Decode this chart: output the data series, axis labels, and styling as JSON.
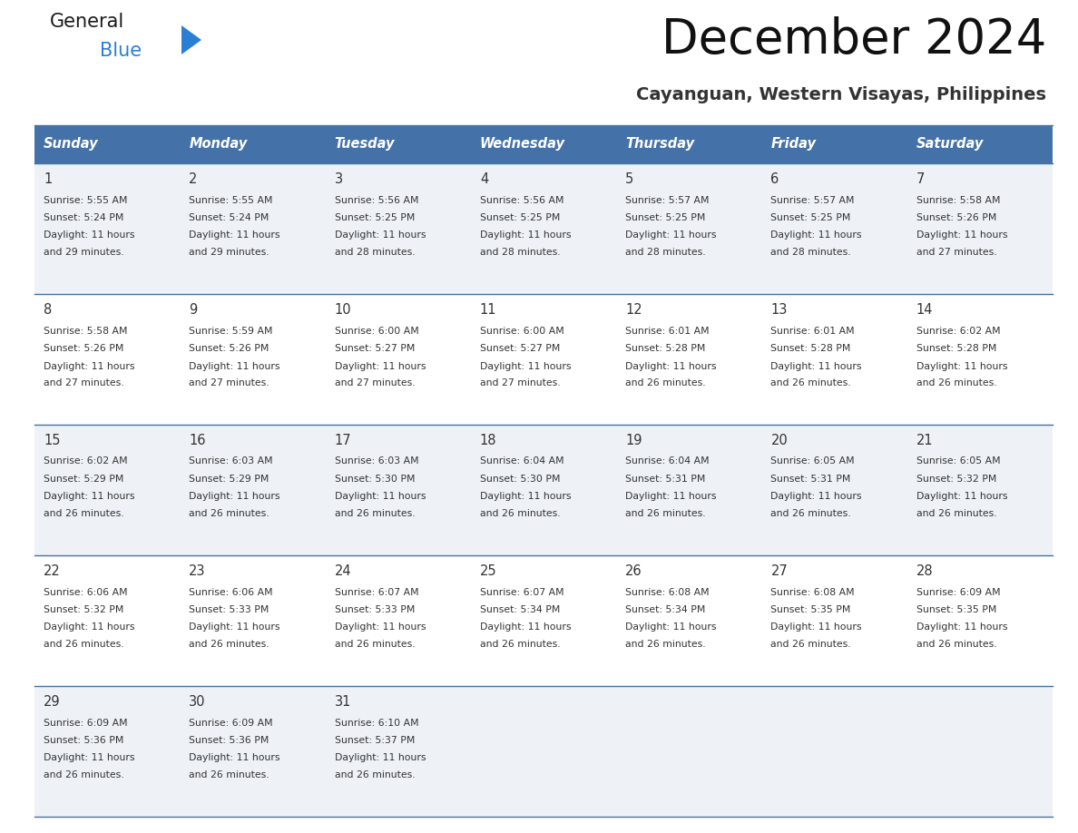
{
  "title": "December 2024",
  "subtitle": "Cayanguan, Western Visayas, Philippines",
  "header_bg": "#4472a8",
  "header_text": "#ffffff",
  "cell_bg_odd": "#eef2f7",
  "cell_bg_even": "#ffffff",
  "border_color": "#4472a8",
  "text_color": "#333333",
  "days_of_week": [
    "Sunday",
    "Monday",
    "Tuesday",
    "Wednesday",
    "Thursday",
    "Friday",
    "Saturday"
  ],
  "weeks": [
    [
      {
        "day": "1",
        "sunrise": "5:55 AM",
        "sunset": "5:24 PM",
        "daylight_h": "11 hours",
        "daylight_m": "and 29 minutes."
      },
      {
        "day": "2",
        "sunrise": "5:55 AM",
        "sunset": "5:24 PM",
        "daylight_h": "11 hours",
        "daylight_m": "and 29 minutes."
      },
      {
        "day": "3",
        "sunrise": "5:56 AM",
        "sunset": "5:25 PM",
        "daylight_h": "11 hours",
        "daylight_m": "and 28 minutes."
      },
      {
        "day": "4",
        "sunrise": "5:56 AM",
        "sunset": "5:25 PM",
        "daylight_h": "11 hours",
        "daylight_m": "and 28 minutes."
      },
      {
        "day": "5",
        "sunrise": "5:57 AM",
        "sunset": "5:25 PM",
        "daylight_h": "11 hours",
        "daylight_m": "and 28 minutes."
      },
      {
        "day": "6",
        "sunrise": "5:57 AM",
        "sunset": "5:25 PM",
        "daylight_h": "11 hours",
        "daylight_m": "and 28 minutes."
      },
      {
        "day": "7",
        "sunrise": "5:58 AM",
        "sunset": "5:26 PM",
        "daylight_h": "11 hours",
        "daylight_m": "and 27 minutes."
      }
    ],
    [
      {
        "day": "8",
        "sunrise": "5:58 AM",
        "sunset": "5:26 PM",
        "daylight_h": "11 hours",
        "daylight_m": "and 27 minutes."
      },
      {
        "day": "9",
        "sunrise": "5:59 AM",
        "sunset": "5:26 PM",
        "daylight_h": "11 hours",
        "daylight_m": "and 27 minutes."
      },
      {
        "day": "10",
        "sunrise": "6:00 AM",
        "sunset": "5:27 PM",
        "daylight_h": "11 hours",
        "daylight_m": "and 27 minutes."
      },
      {
        "day": "11",
        "sunrise": "6:00 AM",
        "sunset": "5:27 PM",
        "daylight_h": "11 hours",
        "daylight_m": "and 27 minutes."
      },
      {
        "day": "12",
        "sunrise": "6:01 AM",
        "sunset": "5:28 PM",
        "daylight_h": "11 hours",
        "daylight_m": "and 26 minutes."
      },
      {
        "day": "13",
        "sunrise": "6:01 AM",
        "sunset": "5:28 PM",
        "daylight_h": "11 hours",
        "daylight_m": "and 26 minutes."
      },
      {
        "day": "14",
        "sunrise": "6:02 AM",
        "sunset": "5:28 PM",
        "daylight_h": "11 hours",
        "daylight_m": "and 26 minutes."
      }
    ],
    [
      {
        "day": "15",
        "sunrise": "6:02 AM",
        "sunset": "5:29 PM",
        "daylight_h": "11 hours",
        "daylight_m": "and 26 minutes."
      },
      {
        "day": "16",
        "sunrise": "6:03 AM",
        "sunset": "5:29 PM",
        "daylight_h": "11 hours",
        "daylight_m": "and 26 minutes."
      },
      {
        "day": "17",
        "sunrise": "6:03 AM",
        "sunset": "5:30 PM",
        "daylight_h": "11 hours",
        "daylight_m": "and 26 minutes."
      },
      {
        "day": "18",
        "sunrise": "6:04 AM",
        "sunset": "5:30 PM",
        "daylight_h": "11 hours",
        "daylight_m": "and 26 minutes."
      },
      {
        "day": "19",
        "sunrise": "6:04 AM",
        "sunset": "5:31 PM",
        "daylight_h": "11 hours",
        "daylight_m": "and 26 minutes."
      },
      {
        "day": "20",
        "sunrise": "6:05 AM",
        "sunset": "5:31 PM",
        "daylight_h": "11 hours",
        "daylight_m": "and 26 minutes."
      },
      {
        "day": "21",
        "sunrise": "6:05 AM",
        "sunset": "5:32 PM",
        "daylight_h": "11 hours",
        "daylight_m": "and 26 minutes."
      }
    ],
    [
      {
        "day": "22",
        "sunrise": "6:06 AM",
        "sunset": "5:32 PM",
        "daylight_h": "11 hours",
        "daylight_m": "and 26 minutes."
      },
      {
        "day": "23",
        "sunrise": "6:06 AM",
        "sunset": "5:33 PM",
        "daylight_h": "11 hours",
        "daylight_m": "and 26 minutes."
      },
      {
        "day": "24",
        "sunrise": "6:07 AM",
        "sunset": "5:33 PM",
        "daylight_h": "11 hours",
        "daylight_m": "and 26 minutes."
      },
      {
        "day": "25",
        "sunrise": "6:07 AM",
        "sunset": "5:34 PM",
        "daylight_h": "11 hours",
        "daylight_m": "and 26 minutes."
      },
      {
        "day": "26",
        "sunrise": "6:08 AM",
        "sunset": "5:34 PM",
        "daylight_h": "11 hours",
        "daylight_m": "and 26 minutes."
      },
      {
        "day": "27",
        "sunrise": "6:08 AM",
        "sunset": "5:35 PM",
        "daylight_h": "11 hours",
        "daylight_m": "and 26 minutes."
      },
      {
        "day": "28",
        "sunrise": "6:09 AM",
        "sunset": "5:35 PM",
        "daylight_h": "11 hours",
        "daylight_m": "and 26 minutes."
      }
    ],
    [
      {
        "day": "29",
        "sunrise": "6:09 AM",
        "sunset": "5:36 PM",
        "daylight_h": "11 hours",
        "daylight_m": "and 26 minutes."
      },
      {
        "day": "30",
        "sunrise": "6:09 AM",
        "sunset": "5:36 PM",
        "daylight_h": "11 hours",
        "daylight_m": "and 26 minutes."
      },
      {
        "day": "31",
        "sunrise": "6:10 AM",
        "sunset": "5:37 PM",
        "daylight_h": "11 hours",
        "daylight_m": "and 26 minutes."
      },
      null,
      null,
      null,
      null
    ]
  ],
  "logo_general_color": "#1a1a1a",
  "logo_blue_color": "#2a7fd4",
  "logo_triangle_color": "#2a7fd4",
  "fig_width": 11.88,
  "fig_height": 9.18,
  "dpi": 100
}
